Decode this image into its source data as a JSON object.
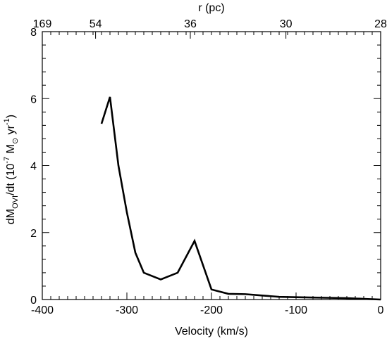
{
  "chart_data": {
    "type": "line",
    "xlabel": "Velocity (km/s)",
    "ylabel": {
      "main": "dM",
      "sub": "OVI",
      "mid": "/dt (10",
      "exp": "-7",
      "unit": " M",
      "sun": "⊙",
      "yr": "  yr",
      "yrexp": "-1",
      "close": ")"
    },
    "top_axis_label": "r (pc)",
    "xlim": [
      -400,
      0
    ],
    "ylim": [
      0,
      8
    ],
    "x_ticks": [
      "-400",
      "-300",
      "-200",
      "-100",
      "0"
    ],
    "y_ticks": [
      "0",
      "2",
      "4",
      "6",
      "8"
    ],
    "top_ticks": [
      {
        "x": -400,
        "label": "169"
      },
      {
        "x": -337,
        "label": "54"
      },
      {
        "x": -225,
        "label": "36"
      },
      {
        "x": -112,
        "label": "30"
      },
      {
        "x": 0,
        "label": "28"
      }
    ],
    "series": [
      {
        "x": [
          -330,
          -320,
          -310,
          -300,
          -290,
          -280,
          -260,
          -240,
          -220,
          -200,
          -180,
          -160,
          -140,
          -120,
          -100,
          -80,
          -60,
          -40,
          -20,
          0
        ],
        "y": [
          5.25,
          6.05,
          4.0,
          2.6,
          1.4,
          0.8,
          0.6,
          0.8,
          1.75,
          0.3,
          0.17,
          0.16,
          0.12,
          0.08,
          0.07,
          0.06,
          0.05,
          0.04,
          0.02,
          0.0
        ]
      }
    ]
  }
}
